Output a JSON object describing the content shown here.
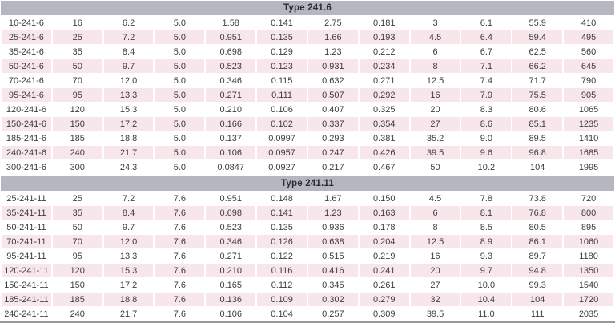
{
  "table": {
    "columns_per_row": 12,
    "colors": {
      "section_header_bg": "#b6b6c0",
      "row_bg": "#ffffff",
      "row_alt_bg": "#f7e7eb",
      "text": "#3c3c42",
      "bottom_rule": "#97979f"
    },
    "sections": [
      {
        "title": "Type 241.6",
        "rows": [
          [
            "16-241-6",
            "16",
            "6.2",
            "5.0",
            "1.58",
            "0.141",
            "2.75",
            "0.181",
            "3",
            "6.1",
            "55.9",
            "410"
          ],
          [
            "25-241-6",
            "25",
            "7.2",
            "5.0",
            "0.951",
            "0.135",
            "1.66",
            "0.193",
            "4.5",
            "6.4",
            "59.4",
            "495"
          ],
          [
            "35-241-6",
            "35",
            "8.4",
            "5.0",
            "0.698",
            "0.129",
            "1.23",
            "0.212",
            "6",
            "6.7",
            "62.5",
            "560"
          ],
          [
            "50-241-6",
            "50",
            "9.7",
            "5.0",
            "0.523",
            "0.123",
            "0.931",
            "0.234",
            "8",
            "7.1",
            "66.2",
            "645"
          ],
          [
            "70-241-6",
            "70",
            "12.0",
            "5.0",
            "0.346",
            "0.115",
            "0.632",
            "0.271",
            "12.5",
            "7.4",
            "71.7",
            "790"
          ],
          [
            "95-241-6",
            "95",
            "13.3",
            "5.0",
            "0.271",
            "0.111",
            "0.507",
            "0.292",
            "16",
            "7.9",
            "75.5",
            "905"
          ],
          [
            "120-241-6",
            "120",
            "15.3",
            "5.0",
            "0.210",
            "0.106",
            "0.407",
            "0.325",
            "20",
            "8.3",
            "80.6",
            "1065"
          ],
          [
            "150-241-6",
            "150",
            "17.2",
            "5.0",
            "0.166",
            "0.102",
            "0.337",
            "0.354",
            "27",
            "8.6",
            "85.1",
            "1235"
          ],
          [
            "185-241-6",
            "185",
            "18.8",
            "5.0",
            "0.137",
            "0.0997",
            "0.293",
            "0.381",
            "35.2",
            "9.0",
            "89.5",
            "1410"
          ],
          [
            "240-241-6",
            "240",
            "21.7",
            "5.0",
            "0.106",
            "0.0957",
            "0.247",
            "0.426",
            "39.5",
            "9.6",
            "96.8",
            "1685"
          ],
          [
            "300-241-6",
            "300",
            "24.3",
            "5.0",
            "0.0847",
            "0.0927",
            "0.217",
            "0.467",
            "50",
            "10.2",
            "104",
            "1995"
          ]
        ]
      },
      {
        "title": "Type 241.11",
        "rows": [
          [
            "25-241-11",
            "25",
            "7.2",
            "7.6",
            "0.951",
            "0.148",
            "1.67",
            "0.150",
            "4.5",
            "7.8",
            "73.8",
            "720"
          ],
          [
            "35-241-11",
            "35",
            "8.4",
            "7.6",
            "0.698",
            "0.141",
            "1.23",
            "0.163",
            "6",
            "8.1",
            "76.8",
            "800"
          ],
          [
            "50-241-11",
            "50",
            "9.7",
            "7.6",
            "0.523",
            "0.135",
            "0.936",
            "0.178",
            "8",
            "8.5",
            "80.5",
            "895"
          ],
          [
            "70-241-11",
            "70",
            "12.0",
            "7.6",
            "0.346",
            "0.126",
            "0.638",
            "0.204",
            "12.5",
            "8.9",
            "86.1",
            "1060"
          ],
          [
            "95-241-11",
            "95",
            "13.3",
            "7.6",
            "0.271",
            "0.122",
            "0.515",
            "0.219",
            "16",
            "9.3",
            "89.7",
            "1180"
          ],
          [
            "120-241-11",
            "120",
            "15.3",
            "7.6",
            "0.210",
            "0.116",
            "0.416",
            "0.241",
            "20",
            "9.7",
            "94.8",
            "1350"
          ],
          [
            "150-241-11",
            "150",
            "17.2",
            "7.6",
            "0.165",
            "0.112",
            "0.345",
            "0.261",
            "27",
            "10.0",
            "99.3",
            "1540"
          ],
          [
            "185-241-11",
            "185",
            "18.8",
            "7.6",
            "0.136",
            "0.109",
            "0.302",
            "0.279",
            "32",
            "10.4",
            "104",
            "1720"
          ],
          [
            "240-241-11",
            "240",
            "21.7",
            "7.6",
            "0.106",
            "0.104",
            "0.257",
            "0.309",
            "39.5",
            "11.0",
            "111",
            "2035"
          ]
        ]
      }
    ]
  }
}
